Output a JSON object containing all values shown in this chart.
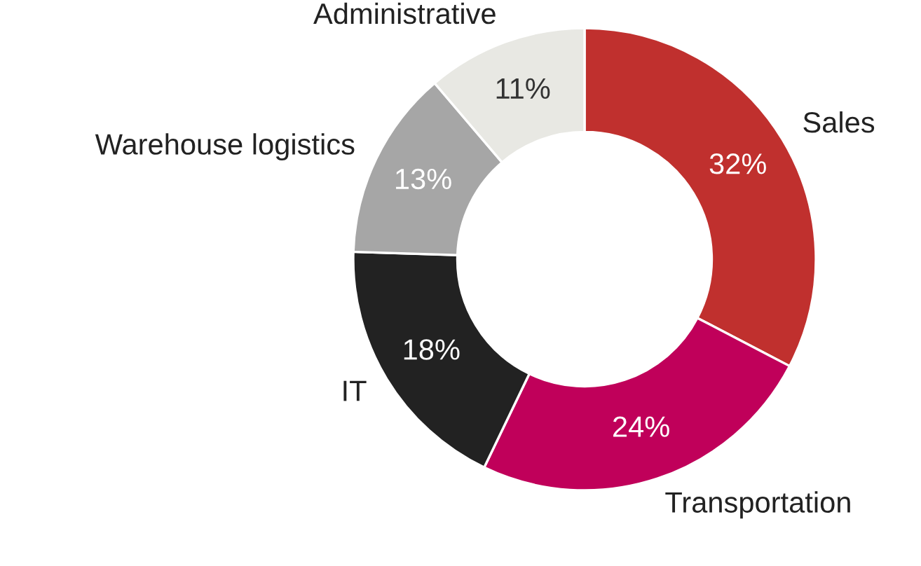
{
  "chart_data": {
    "type": "donut",
    "categories": [
      "Sales",
      "Transportation",
      "IT",
      "Warehouse logistics",
      "Administrative"
    ],
    "values": [
      32,
      24,
      18,
      13,
      11
    ],
    "value_labels": [
      "32%",
      "24%",
      "18%",
      "13%",
      "11%"
    ],
    "colors": [
      "#c0302e",
      "#c0005a",
      "#222222",
      "#a6a6a6",
      "#e8e8e3"
    ],
    "legend": false
  }
}
